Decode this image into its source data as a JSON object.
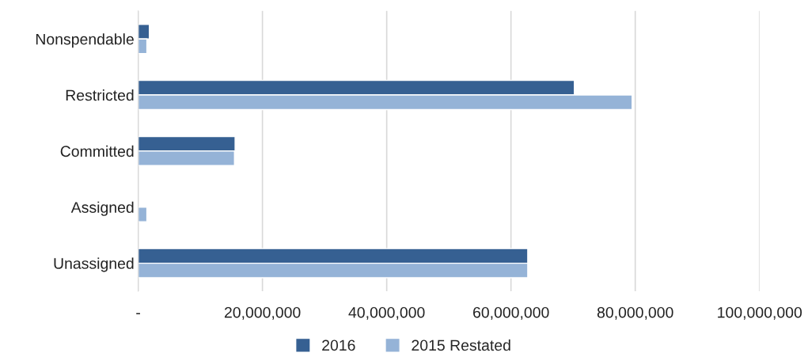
{
  "chart_data": {
    "type": "bar",
    "orientation": "horizontal",
    "categories": [
      "Nonspendable",
      "Restricted",
      "Committed",
      "Assigned",
      "Unassigned"
    ],
    "series": [
      {
        "name": "2016",
        "color": "#366092",
        "values": [
          1800000,
          70200000,
          15600000,
          null,
          62700000
        ]
      },
      {
        "name": "2015 Restated",
        "color": "#95b3d7",
        "values": [
          1400000,
          79500000,
          15500000,
          1400000,
          62700000
        ]
      }
    ],
    "xlim": [
      0,
      100000000
    ],
    "xticks": [
      {
        "value": 0,
        "label": "-"
      },
      {
        "value": 20000000,
        "label": "20,000,000"
      },
      {
        "value": 40000000,
        "label": "40,000,000"
      },
      {
        "value": 60000000,
        "label": "60,000,000"
      },
      {
        "value": 80000000,
        "label": "80,000,000"
      },
      {
        "value": 100000000,
        "label": "100,000,000"
      }
    ],
    "grid": "x",
    "legend": "bottom"
  }
}
